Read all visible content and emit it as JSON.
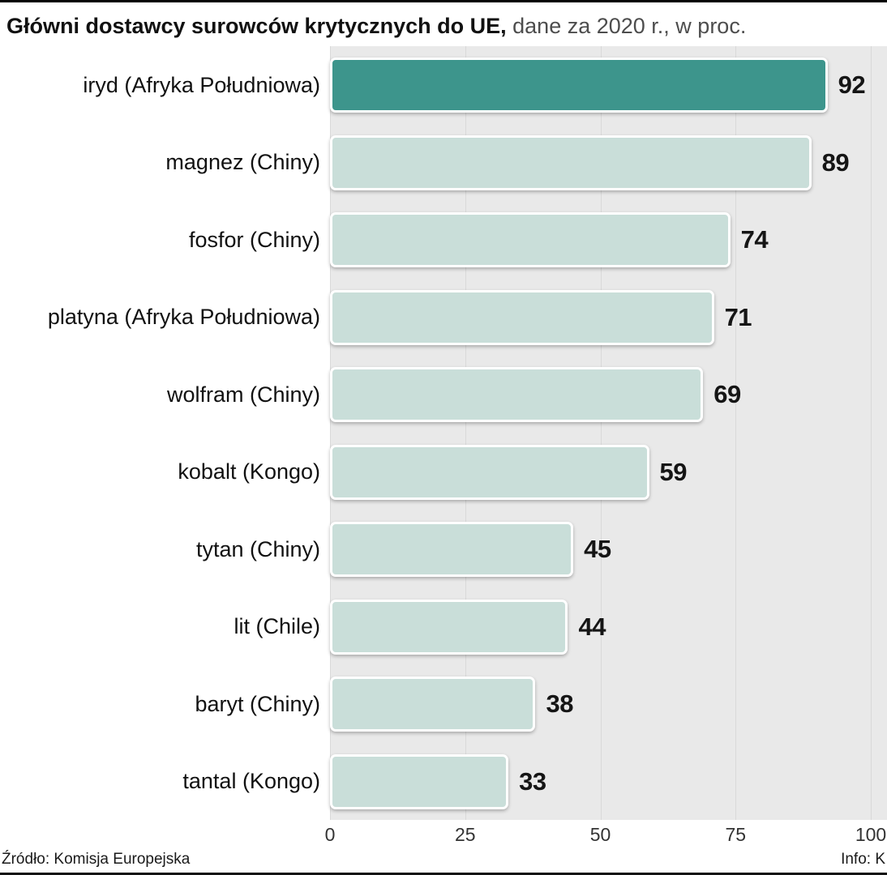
{
  "header": {
    "title_bold": "Główni dostawcy surowców krytycznych do UE,",
    "title_rest": " dane za 2020 r., w proc."
  },
  "chart_data": {
    "type": "bar",
    "orientation": "horizontal",
    "title": "Główni dostawcy surowców krytycznych do UE, dane za 2020 r., w proc.",
    "categories": [
      "iryd (Afryka Południowa)",
      "magnez (Chiny)",
      "fosfor (Chiny)",
      "platyna (Afryka Południowa)",
      "wolfram (Chiny)",
      "kobalt (Kongo)",
      "tytan (Chiny)",
      "lit (Chile)",
      "baryt (Chiny)",
      "tantal (Kongo)"
    ],
    "values": [
      92,
      89,
      74,
      71,
      69,
      59,
      45,
      44,
      38,
      33
    ],
    "x_ticks": [
      0,
      25,
      50,
      75,
      100
    ],
    "xlim": [
      0,
      100
    ],
    "xlabel": "",
    "ylabel": "",
    "grid": "vertical",
    "legend": "none",
    "highlight_index": 0,
    "colors": {
      "highlight": "#3d958c",
      "bar": "#c9ded9",
      "plot_bg": "#e9e9e9",
      "grid": "#d9d9d9"
    }
  },
  "footer": {
    "source": "Źródło: Komisja Europejska",
    "info": "Info: K"
  }
}
